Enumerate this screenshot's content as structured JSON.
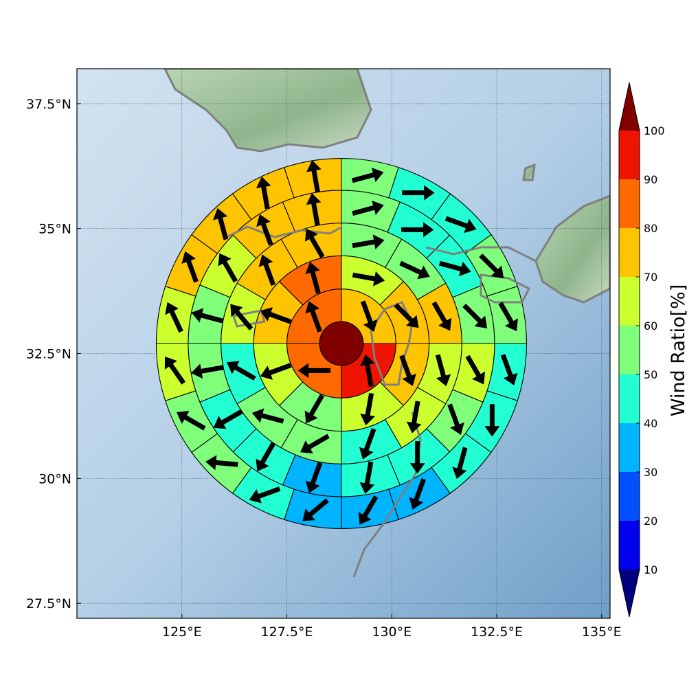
{
  "chart_data": {
    "type": "heatmap",
    "subtype": "polar-sector wind ratio map with direction arrows",
    "center": {
      "lon": 128.8,
      "lat": 32.7
    },
    "x_ticks": [
      "125°E",
      "127.5°E",
      "130°E",
      "132.5°E",
      "135°E"
    ],
    "x_tick_values": [
      125,
      127.5,
      130,
      132.5,
      135
    ],
    "y_ticks": [
      "37.5°N",
      "35°N",
      "32.5°N",
      "30°N",
      "27.5°N"
    ],
    "y_tick_values": [
      37.5,
      35,
      32.5,
      30,
      27.5
    ],
    "xlim": [
      122.5,
      135.2
    ],
    "ylim": [
      27.2,
      38.2
    ],
    "grid": true,
    "colorbar": {
      "label": "Wind Ratio[%]",
      "ticks": [
        "10",
        "20",
        "30",
        "40",
        "50",
        "60",
        "70",
        "80",
        "90",
        "100"
      ],
      "boundaries": [
        0,
        10,
        20,
        30,
        40,
        50,
        60,
        70,
        80,
        90,
        100
      ],
      "colors": [
        "#000080",
        "#0000ee",
        "#0050ff",
        "#00b4ff",
        "#22ffd2",
        "#80ff7b",
        "#ccff2e",
        "#ffc400",
        "#ff6a00",
        "#ee1400",
        "#800000"
      ],
      "extend": "both"
    },
    "ring_radii_deg": [
      0.52,
      1.3,
      2.09,
      2.87,
      3.65,
      4.41
    ],
    "center_value": 100,
    "rings": [
      {
        "ring": 1,
        "sectors": 4,
        "values": [
          75,
          95,
          85,
          85
        ],
        "arrow_directions_deg": [
          160,
          350,
          270,
          340
        ]
      },
      {
        "ring": 2,
        "sectors": 8,
        "values": [
          65,
          75,
          75,
          65,
          55,
          65,
          75,
          85
        ],
        "arrow_directions_deg": [
          100,
          135,
          160,
          190,
          210,
          250,
          290,
          345
        ]
      },
      {
        "ring": 3,
        "sectors": 12,
        "values": [
          55,
          55,
          75,
          65,
          65,
          45,
          55,
          55,
          45,
          65,
          75,
          75
        ],
        "arrow_directions_deg": [
          80,
          115,
          150,
          165,
          190,
          200,
          240,
          285,
          300,
          320,
          340,
          330
        ]
      },
      {
        "ring": 4,
        "sectors": 16,
        "values": [
          55,
          45,
          45,
          55,
          65,
          55,
          45,
          45,
          35,
          45,
          45,
          55,
          55,
          65,
          75,
          75
        ],
        "arrow_directions_deg": [
          75,
          90,
          105,
          135,
          150,
          160,
          180,
          190,
          200,
          210,
          240,
          260,
          285,
          330,
          340,
          350
        ]
      },
      {
        "ring": 5,
        "sectors": 20,
        "values": [
          55,
          45,
          45,
          55,
          55,
          45,
          45,
          45,
          35,
          35,
          35,
          45,
          55,
          55,
          65,
          65,
          75,
          75,
          75,
          75
        ],
        "arrow_directions_deg": [
          75,
          90,
          110,
          135,
          150,
          160,
          180,
          195,
          200,
          210,
          230,
          250,
          275,
          300,
          325,
          335,
          340,
          345,
          350,
          350
        ]
      },
      {
        "ring": 6,
        "sectors": 24,
        "values": [
          55,
          35,
          35,
          45,
          45,
          45,
          45,
          35,
          35,
          35,
          35,
          25,
          35,
          35,
          45,
          45,
          55,
          55,
          65,
          75,
          75,
          75,
          65,
          65
        ],
        "arrow_directions_deg": [
          75,
          85,
          110,
          135,
          150,
          160,
          180,
          190,
          200,
          205,
          220,
          240,
          265,
          280,
          295,
          310,
          330,
          345,
          350,
          355,
          350,
          345,
          340,
          60
        ]
      }
    ]
  }
}
